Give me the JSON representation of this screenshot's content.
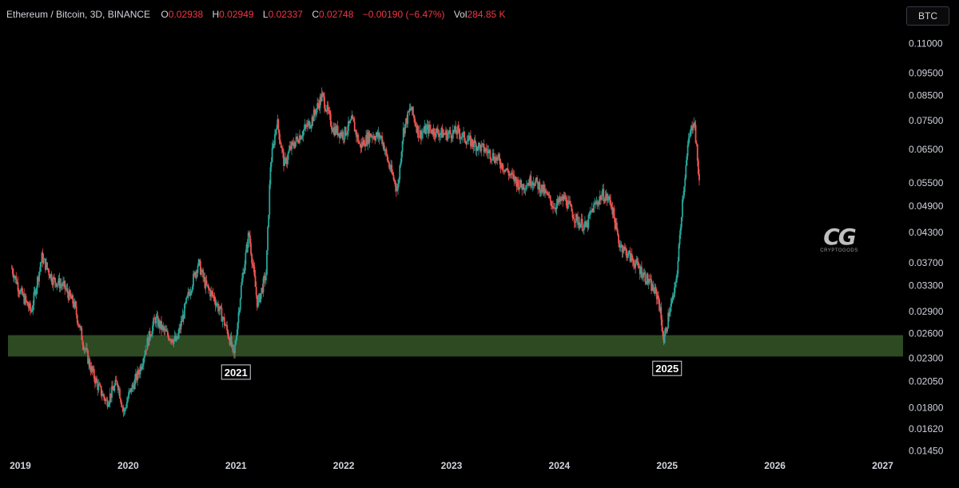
{
  "header": {
    "symbol": "Ethereum / Bitcoin, 3D, BINANCE",
    "open_label": "O",
    "open": "0.02938",
    "high_label": "H",
    "high": "0.02949",
    "low_label": "L",
    "low": "0.02337",
    "close_label": "C",
    "close": "0.02748",
    "change": "−0.00190 (−6.47%)",
    "vol_label": "Vol",
    "vol": "284.85 K",
    "value_color": "#f23645"
  },
  "currency_button": "BTC",
  "watermark": {
    "mark": "CG",
    "name": "CRYPTOGODS"
  },
  "colors": {
    "up": "#26a69a",
    "down": "#ef5350",
    "zone": "#2d4a22",
    "bg": "#000000"
  },
  "chart_data": {
    "type": "line",
    "subtype": "candlestick",
    "y_scale": "log",
    "ylim": [
      0.0142,
      0.1165
    ],
    "y_ticks": [
      "0.11000",
      "0.09500",
      "0.08500",
      "0.07500",
      "0.06500",
      "0.05500",
      "0.04900",
      "0.04300",
      "0.03700",
      "0.03300",
      "0.02900",
      "0.02600",
      "0.02300",
      "0.02050",
      "0.01800",
      "0.01620",
      "0.01450"
    ],
    "x_ticks": [
      "2019",
      "2020",
      "2021",
      "2022",
      "2023",
      "2024",
      "2025",
      "2026",
      "2027"
    ],
    "xlim": [
      2018.9,
      2027.1
    ],
    "grid": false,
    "series": [
      {
        "x": [
          2018.92,
          2019.0,
          2019.1,
          2019.2,
          2019.3,
          2019.4,
          2019.5,
          2019.58,
          2019.65,
          2019.72,
          2019.8,
          2019.9,
          2019.96,
          2020.0,
          2020.1,
          2020.18,
          2020.25,
          2020.35,
          2020.45,
          2020.55,
          2020.65,
          2020.72,
          2020.8,
          2020.88,
          2020.95,
          2020.98,
          2021.05,
          2021.12,
          2021.2,
          2021.28,
          2021.32,
          2021.38,
          2021.45,
          2021.5,
          2021.6,
          2021.7,
          2021.8,
          2021.9,
          2022.0,
          2022.08,
          2022.15,
          2022.25,
          2022.35,
          2022.42,
          2022.5,
          2022.55,
          2022.62,
          2022.7,
          2022.78,
          2022.85,
          2022.95,
          2023.05,
          2023.15,
          2023.25,
          2023.35,
          2023.45,
          2023.55,
          2023.65,
          2023.75,
          2023.85,
          2023.95,
          2024.05,
          2024.15,
          2024.25,
          2024.3,
          2024.4,
          2024.48,
          2024.55,
          2024.62,
          2024.7,
          2024.78,
          2024.85,
          2024.92,
          2024.97,
          2025.02,
          2025.07,
          2025.1,
          2025.14,
          2025.2,
          2025.25,
          2025.28,
          2025.3
        ],
        "y": [
          0.036,
          0.032,
          0.029,
          0.038,
          0.034,
          0.033,
          0.03,
          0.025,
          0.022,
          0.02,
          0.0185,
          0.0205,
          0.0175,
          0.019,
          0.0215,
          0.025,
          0.028,
          0.026,
          0.025,
          0.031,
          0.037,
          0.033,
          0.031,
          0.028,
          0.025,
          0.023,
          0.033,
          0.043,
          0.03,
          0.035,
          0.06,
          0.075,
          0.06,
          0.065,
          0.07,
          0.075,
          0.085,
          0.072,
          0.07,
          0.075,
          0.066,
          0.07,
          0.069,
          0.06,
          0.053,
          0.071,
          0.08,
          0.07,
          0.072,
          0.071,
          0.07,
          0.071,
          0.068,
          0.066,
          0.064,
          0.061,
          0.057,
          0.054,
          0.056,
          0.053,
          0.049,
          0.051,
          0.046,
          0.044,
          0.048,
          0.052,
          0.05,
          0.041,
          0.039,
          0.037,
          0.035,
          0.033,
          0.031,
          0.025,
          0.029,
          0.032,
          0.037,
          0.05,
          0.068,
          0.076,
          0.062,
          0.055
        ]
      }
    ],
    "zone": {
      "low": 0.0232,
      "high": 0.0258
    },
    "annotations": [
      {
        "text": "2021",
        "x": 2021.0,
        "y": 0.0213
      },
      {
        "text": "2025",
        "x": 2025.0,
        "y": 0.0217
      }
    ]
  }
}
